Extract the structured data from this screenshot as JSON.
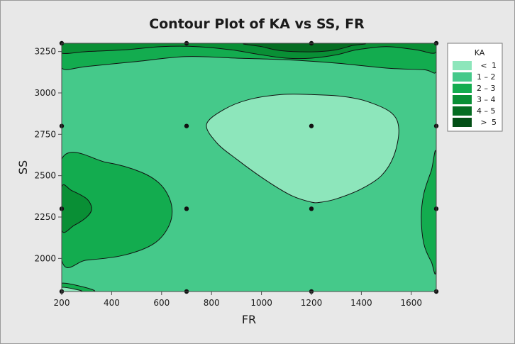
{
  "chart_data": {
    "type": "contour",
    "title": "Contour Plot of KA vs SS, FR",
    "xlabel": "FR",
    "ylabel": "SS",
    "xlim": [
      200,
      1700
    ],
    "ylim": [
      1800,
      3300
    ],
    "x_ticks": [
      200,
      400,
      600,
      800,
      1000,
      1200,
      1400,
      1600
    ],
    "y_ticks": [
      2000,
      2250,
      2500,
      2750,
      3000,
      3250
    ],
    "x_tick_labels": [
      "200",
      "400",
      "600",
      "800",
      "1000",
      "1200",
      "1400",
      "1600"
    ],
    "y_tick_labels": [
      "2000",
      "2250",
      "2500",
      "2750",
      "3000",
      "3250"
    ],
    "legend": {
      "title": "KA",
      "position": "right",
      "entries": [
        {
          "symbol": "<",
          "label": "1",
          "color": "#8de6bb"
        },
        {
          "symbol": "",
          "label": "1 – 2",
          "color": "#45c98a"
        },
        {
          "symbol": "",
          "label": "2 – 3",
          "color": "#13ac4f"
        },
        {
          "symbol": "",
          "label": "3 – 4",
          "color": "#098f35"
        },
        {
          "symbol": "",
          "label": "4 – 5",
          "color": "#056d22"
        },
        {
          "symbol": ">",
          "label": "5",
          "color": "#034f16"
        }
      ]
    },
    "design_points": [
      {
        "x": 200,
        "y": 3300
      },
      {
        "x": 700,
        "y": 3300
      },
      {
        "x": 1200,
        "y": 3300
      },
      {
        "x": 1700,
        "y": 3300
      },
      {
        "x": 200,
        "y": 2800
      },
      {
        "x": 700,
        "y": 2800
      },
      {
        "x": 1200,
        "y": 2800
      },
      {
        "x": 1700,
        "y": 2800
      },
      {
        "x": 200,
        "y": 2300
      },
      {
        "x": 700,
        "y": 2300
      },
      {
        "x": 1200,
        "y": 2300
      },
      {
        "x": 1700,
        "y": 2300
      },
      {
        "x": 200,
        "y": 1800
      },
      {
        "x": 700,
        "y": 1800
      },
      {
        "x": 1200,
        "y": 1800
      },
      {
        "x": 1700,
        "y": 1800
      }
    ],
    "regions": [
      {
        "level": "2 – 3",
        "color": "#13ac4f",
        "points": [
          [
            200,
            3300
          ],
          [
            1700,
            3300
          ],
          [
            1700,
            3130
          ],
          [
            1650,
            3140
          ],
          [
            1500,
            3150
          ],
          [
            1300,
            3180
          ],
          [
            1100,
            3200
          ],
          [
            900,
            3210
          ],
          [
            700,
            3220
          ],
          [
            500,
            3190
          ],
          [
            300,
            3160
          ],
          [
            200,
            3150
          ]
        ]
      },
      {
        "level": "3 – 4",
        "color": "#098f35",
        "points": [
          [
            200,
            3300
          ],
          [
            1700,
            3300
          ],
          [
            1700,
            3250
          ],
          [
            1680,
            3240
          ],
          [
            1620,
            3260
          ],
          [
            1500,
            3280
          ],
          [
            1380,
            3260
          ],
          [
            1300,
            3230
          ],
          [
            1200,
            3210
          ],
          [
            1100,
            3210
          ],
          [
            1000,
            3230
          ],
          [
            880,
            3260
          ],
          [
            740,
            3280
          ],
          [
            600,
            3280
          ],
          [
            450,
            3260
          ],
          [
            300,
            3250
          ],
          [
            200,
            3240
          ]
        ]
      },
      {
        "level": "4 – 5",
        "color": "#056d22",
        "points": [
          [
            950,
            3300
          ],
          [
            1000,
            3280
          ],
          [
            1080,
            3255
          ],
          [
            1200,
            3248
          ],
          [
            1290,
            3258
          ],
          [
            1360,
            3285
          ],
          [
            1390,
            3300
          ]
        ]
      },
      {
        "level": "2 – 3",
        "color": "#13ac4f",
        "points": [
          [
            200,
            2600
          ],
          [
            380,
            2580
          ],
          [
            520,
            2520
          ],
          [
            600,
            2440
          ],
          [
            640,
            2320
          ],
          [
            630,
            2200
          ],
          [
            570,
            2090
          ],
          [
            450,
            2020
          ],
          [
            300,
            1990
          ],
          [
            200,
            1990
          ]
        ]
      },
      {
        "level": "3 – 4",
        "color": "#098f35",
        "points": [
          [
            200,
            2430
          ],
          [
            240,
            2410
          ],
          [
            300,
            2360
          ],
          [
            320,
            2300
          ],
          [
            300,
            2250
          ],
          [
            250,
            2200
          ],
          [
            200,
            2170
          ]
        ]
      },
      {
        "level": "2 – 3",
        "color": "#13ac4f",
        "points": [
          [
            1700,
            2620
          ],
          [
            1680,
            2530
          ],
          [
            1650,
            2390
          ],
          [
            1640,
            2250
          ],
          [
            1650,
            2090
          ],
          [
            1680,
            1980
          ],
          [
            1700,
            1950
          ]
        ]
      },
      {
        "level": "2 – 3",
        "color": "#13ac4f",
        "points": [
          [
            200,
            1850
          ],
          [
            280,
            1830
          ],
          [
            330,
            1800
          ],
          [
            200,
            1800
          ]
        ]
      },
      {
        "level": "< 1",
        "color": "#8de6bb",
        "points": [
          [
            780,
            2810
          ],
          [
            850,
            2900
          ],
          [
            950,
            2960
          ],
          [
            1080,
            2990
          ],
          [
            1200,
            2990
          ],
          [
            1320,
            2980
          ],
          [
            1420,
            2950
          ],
          [
            1520,
            2880
          ],
          [
            1550,
            2780
          ],
          [
            1530,
            2620
          ],
          [
            1480,
            2500
          ],
          [
            1400,
            2420
          ],
          [
            1300,
            2360
          ],
          [
            1240,
            2340
          ],
          [
            1200,
            2340
          ],
          [
            1120,
            2380
          ],
          [
            1020,
            2470
          ],
          [
            900,
            2600
          ],
          [
            820,
            2700
          ]
        ]
      },
      {
        "level": "< 1",
        "color": "#8de6bb",
        "points": [
          [
            200,
            1800
          ],
          [
            200,
            1825
          ],
          [
            250,
            1815
          ],
          [
            280,
            1800
          ]
        ]
      }
    ]
  }
}
